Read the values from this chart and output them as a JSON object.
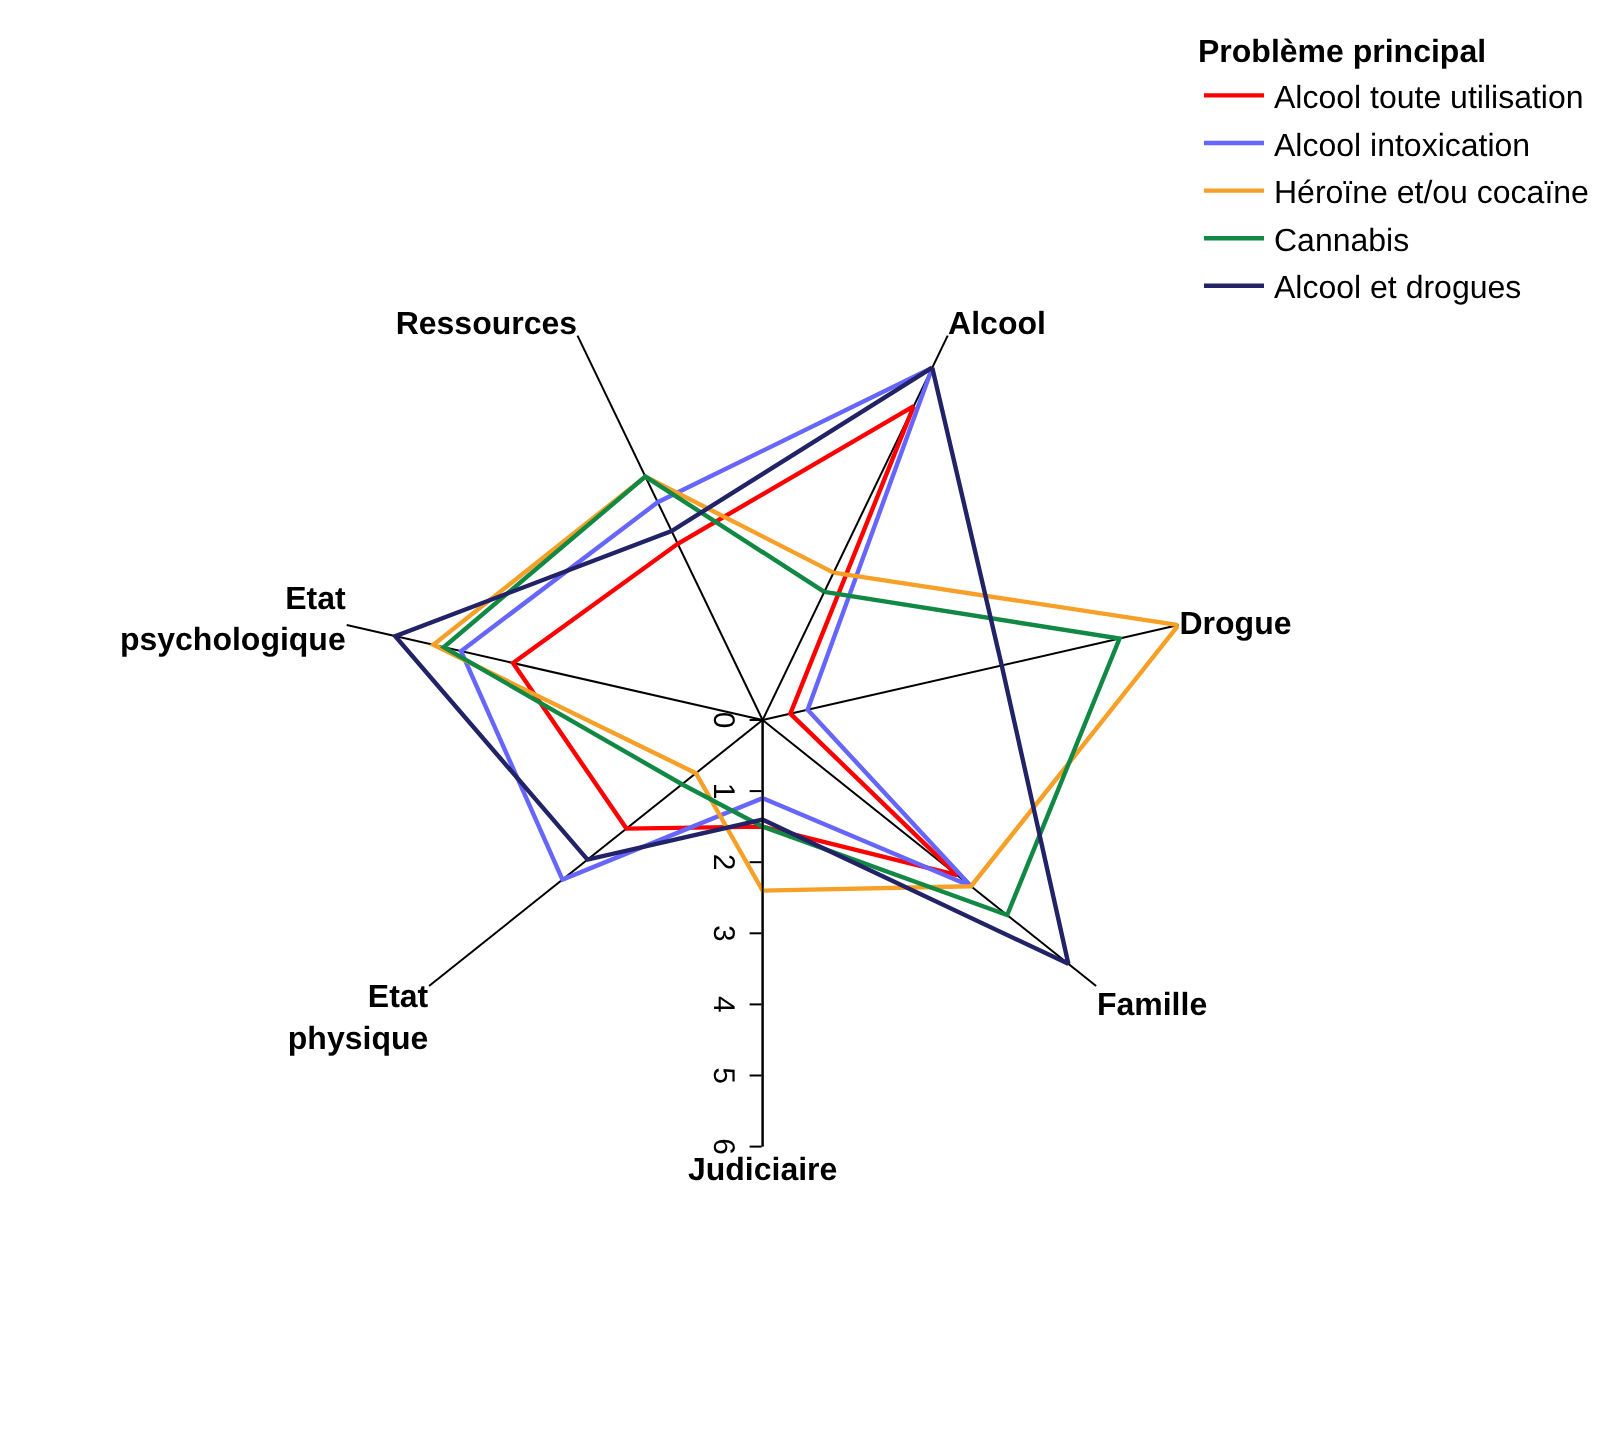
{
  "chart_data": {
    "type": "radar",
    "legend_title": "Problème principal",
    "legend": "top right",
    "grid": "x",
    "categories": [
      "Alcool",
      "Drogue",
      "Famille",
      "Judiciaire",
      "Etat physique",
      "Etat psychologique",
      "Ressources"
    ],
    "ylim": [
      0,
      6
    ],
    "yticks": [
      0,
      1,
      2,
      3,
      4,
      5,
      6
    ],
    "series": [
      {
        "name": "Alcool toute utilisation",
        "color": "#ff0000",
        "values": [
          4.9,
          0.4,
          3.5,
          1.5,
          2.45,
          3.6,
          2.75
        ]
      },
      {
        "name": "Alcool intoxication",
        "color": "#6666ff",
        "values": [
          5.5,
          0.65,
          3.75,
          1.1,
          3.6,
          4.35,
          3.4
        ]
      },
      {
        "name": "Héroïne et/ou cocaïne",
        "color": "#f7a028",
        "values": [
          2.3,
          6.0,
          3.75,
          2.4,
          1.2,
          4.75,
          3.8
        ]
      },
      {
        "name": "Cannabis",
        "color": "#118844",
        "values": [
          2.0,
          5.15,
          4.4,
          1.5,
          1.45,
          4.6,
          3.8
        ]
      },
      {
        "name": "Alcool et drogues",
        "color": "#222266",
        "values": [
          5.5,
          3.45,
          5.5,
          1.4,
          3.15,
          5.3,
          2.95
        ]
      }
    ]
  }
}
